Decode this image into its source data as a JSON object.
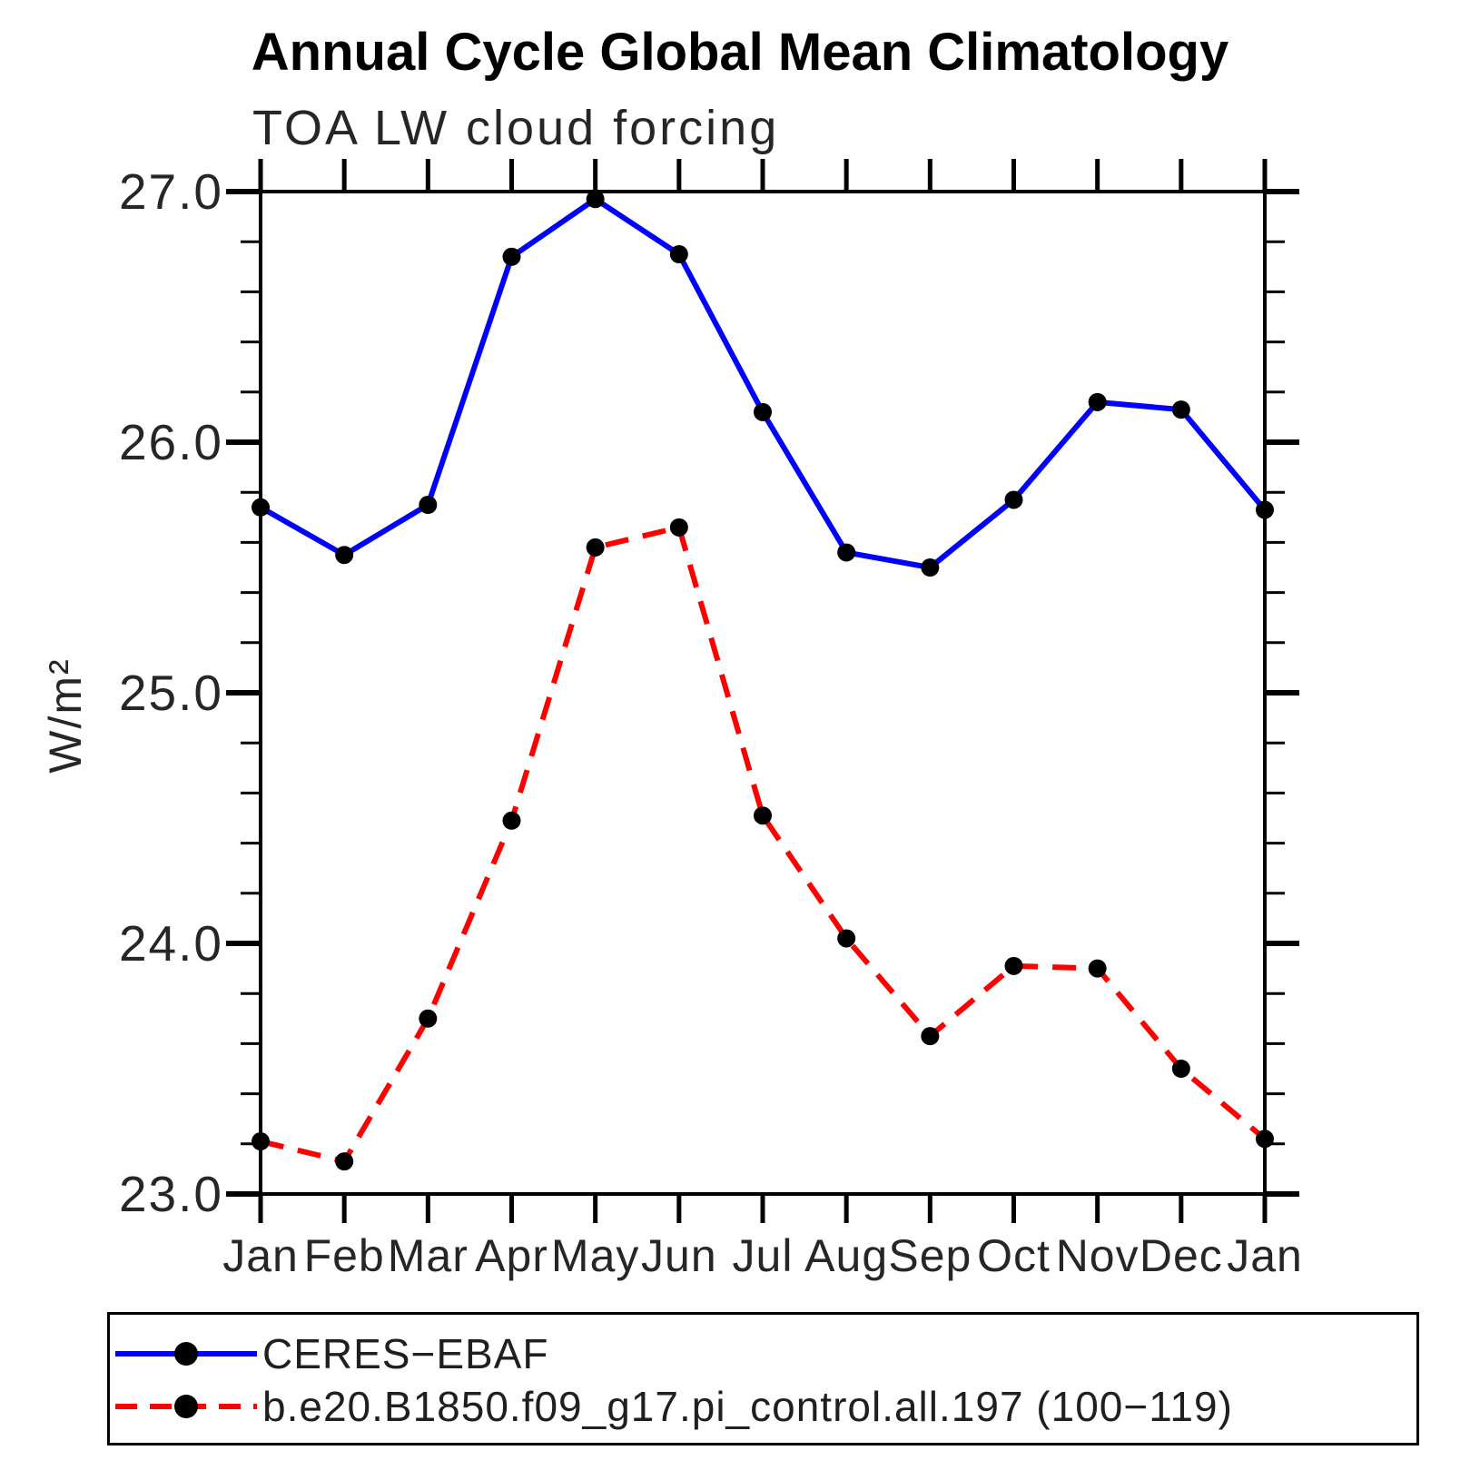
{
  "page": {
    "title": "Annual Cycle Global Mean Climatology",
    "subtitle": "TOA LW cloud forcing"
  },
  "chart_data": {
    "type": "line",
    "title": "Annual Cycle Global Mean Climatology",
    "subtitle": "TOA LW cloud forcing",
    "xlabel": "",
    "ylabel": "W/m²",
    "categories": [
      "Jan",
      "Feb",
      "Mar",
      "Apr",
      "May",
      "Jun",
      "Jul",
      "Aug",
      "Sep",
      "Oct",
      "Nov",
      "Dec",
      "Jan"
    ],
    "y_axis": {
      "min": 23.0,
      "max": 27.0,
      "major_step": 1.0,
      "minor_step": 0.2,
      "tick_labels": [
        "27.0",
        "26.0",
        "25.0",
        "24.0",
        "23.0"
      ]
    },
    "grid": false,
    "legend_position": "bottom",
    "series": [
      {
        "name": "CERES−EBAF",
        "color": "#0000ff",
        "line_style": "solid",
        "marker": "filled-circle",
        "marker_color": "#000000",
        "values": [
          25.74,
          25.55,
          25.75,
          26.74,
          26.97,
          26.75,
          26.12,
          25.56,
          25.5,
          25.77,
          26.16,
          26.13,
          25.73
        ]
      },
      {
        "name": "b.e20.B1850.f09_g17.pi_control.all.197 (100−119)",
        "color": "#ff0000",
        "line_style": "dashed",
        "marker": "filled-circle",
        "marker_color": "#000000",
        "values": [
          23.21,
          23.13,
          23.7,
          24.49,
          25.58,
          25.66,
          24.51,
          24.02,
          23.63,
          23.91,
          23.9,
          23.5,
          23.22
        ]
      }
    ]
  }
}
